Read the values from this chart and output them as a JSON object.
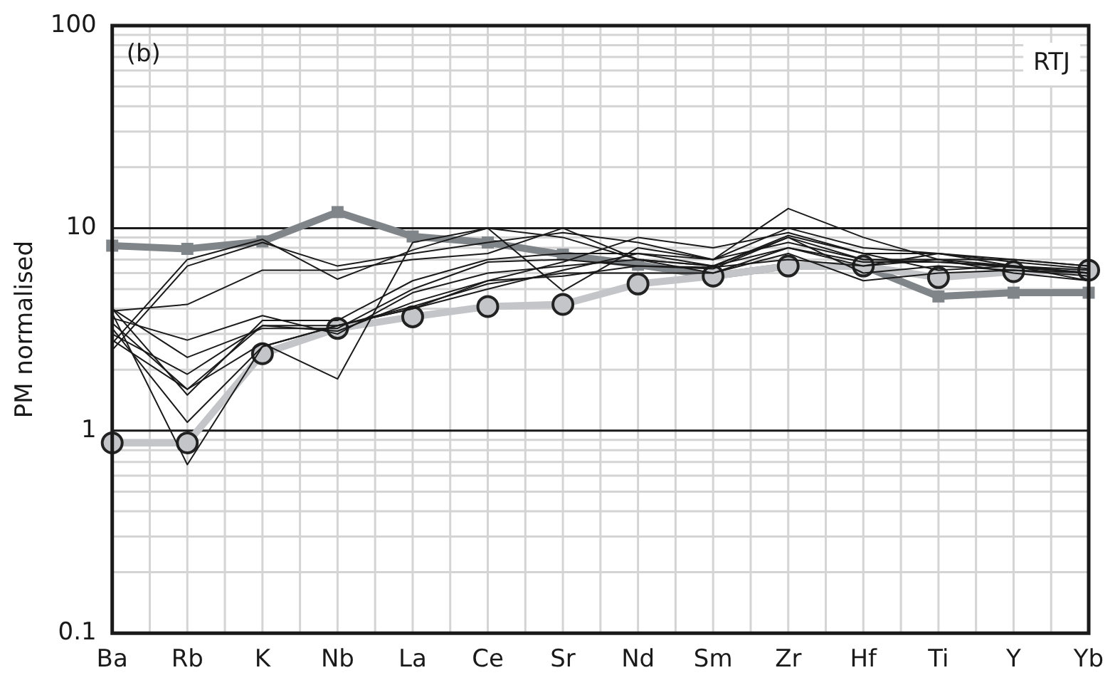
{
  "chart_data": {
    "type": "line",
    "ylabel": "PM normalised",
    "annotations": [
      "(b)",
      "RTJ"
    ],
    "categories": [
      "Ba",
      "Rb",
      "K",
      "Nb",
      "La",
      "Ce",
      "Sr",
      "Nd",
      "Sm",
      "Zr",
      "Hf",
      "Ti",
      "Y",
      "Yb"
    ],
    "log": true,
    "ylim": [
      0.1,
      100
    ],
    "yticks": [
      0.1,
      1,
      10,
      100
    ],
    "grid": true,
    "legend": false,
    "line_style": "solid",
    "series": [
      {
        "color": "#1a1a1a",
        "marker": "none",
        "values": [
          3.9,
          4.2,
          6.2,
          6.2,
          7.0,
          7.5,
          10,
          7,
          6.5,
          9,
          7,
          7,
          6.5,
          6
        ]
      },
      {
        "color": "#1a1a1a",
        "marker": "none",
        "values": [
          2.5,
          6.5,
          8.5,
          6.5,
          7.5,
          8.5,
          9.5,
          8.5,
          7,
          10,
          8,
          7.5,
          6.5,
          6
        ]
      },
      {
        "color": "#1a1a1a",
        "marker": "none",
        "values": [
          2.7,
          7,
          8.8,
          5.6,
          7.8,
          10,
          4.9,
          8,
          7,
          12.5,
          9,
          7,
          7,
          6.5
        ]
      },
      {
        "color": "#1a1a1a",
        "marker": "none",
        "values": [
          3.6,
          2.8,
          3.7,
          3.0,
          4.8,
          6,
          6.5,
          7,
          6,
          8,
          6.5,
          7,
          6,
          5.5
        ]
      },
      {
        "color": "#1a1a1a",
        "marker": "none",
        "values": [
          4,
          2.3,
          3.2,
          3.2,
          5,
          6.8,
          7,
          6.5,
          6.3,
          9,
          6,
          6.5,
          6.2,
          6
        ]
      },
      {
        "color": "#1a1a1a",
        "marker": "none",
        "values": [
          3.0,
          1.9,
          3.3,
          3.1,
          4.3,
          5.5,
          6.8,
          9,
          8,
          9.5,
          7.5,
          6.2,
          6.5,
          6.2
        ]
      },
      {
        "color": "#1a1a1a",
        "marker": "none",
        "values": [
          2.8,
          1.6,
          3.3,
          3.3,
          4,
          5,
          6.2,
          7.5,
          7,
          8.5,
          7,
          6.8,
          6.4,
          6
        ]
      },
      {
        "color": "#1a1a1a",
        "marker": "none",
        "values": [
          3.4,
          1.6,
          2.7,
          1.8,
          8.5,
          10,
          9,
          7,
          6.5,
          9.2,
          7.5,
          7.5,
          7,
          6.5
        ]
      },
      {
        "color": "#1a1a1a",
        "marker": "none",
        "values": [
          3.2,
          1.1,
          2.6,
          3.3,
          4.1,
          5.3,
          6,
          6,
          6,
          7.5,
          5.5,
          6,
          6.2,
          5.8
        ]
      },
      {
        "color": "#1a1a1a",
        "marker": "none",
        "values": [
          3.8,
          0.68,
          2.6,
          3.3,
          4,
          5.5,
          5.8,
          6.5,
          6.4,
          7,
          6.5,
          7.5,
          6.8,
          6.3
        ]
      },
      {
        "color": "#1a1a1a",
        "marker": "none",
        "values": [
          4,
          1.5,
          3.5,
          3.5,
          5.5,
          7,
          7.5,
          7.5,
          6.5,
          8,
          6.8,
          6.8,
          6.5,
          5.5
        ]
      },
      {
        "color": "#c3c5c8",
        "marker": "circle",
        "values": [
          0.87,
          0.87,
          2.4,
          3.2,
          3.65,
          4.1,
          4.2,
          5.3,
          5.8,
          6.5,
          6.5,
          5.7,
          6.1,
          6.2
        ]
      },
      {
        "color": "#808589",
        "marker": "square",
        "values": [
          8.2,
          7.9,
          8.6,
          12,
          9.1,
          8.5,
          7.4,
          6.6,
          5.8,
          6.5,
          6.5,
          4.6,
          4.8,
          4.8
        ]
      }
    ]
  }
}
